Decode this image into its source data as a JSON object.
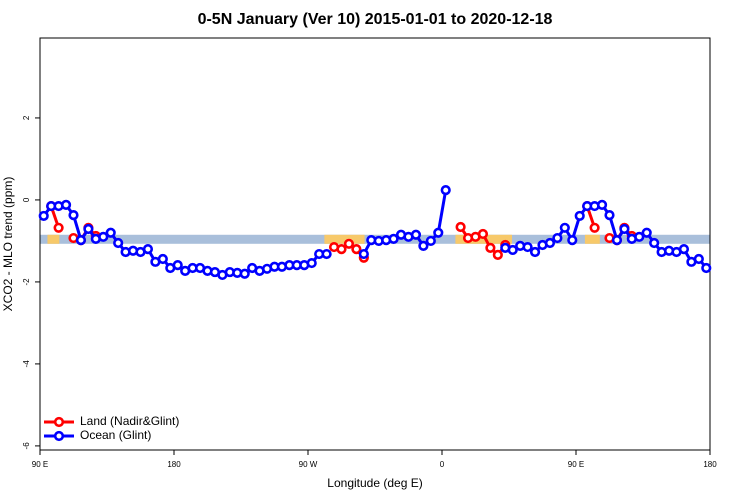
{
  "chart_data": {
    "type": "line",
    "title": "0-5N January (Ver 10)   2015-01-01 to 2020-12-18",
    "x_label": "Longitude (deg E)",
    "y_label": "XCO2 - MLO trend (ppm)",
    "xlim": [
      90,
      540
    ],
    "xticks": [
      {
        "value": 90,
        "label": "90 E"
      },
      {
        "value": 180,
        "label": "180"
      },
      {
        "value": 270,
        "label": "90 W"
      },
      {
        "value": 360,
        "label": "0"
      },
      {
        "value": 450,
        "label": "90 E"
      },
      {
        "value": 540,
        "label": "180"
      }
    ],
    "ylim": [
      -6.1,
      3.95
    ],
    "yticks": [
      -6,
      -4,
      -2,
      0,
      2
    ],
    "legend": "bottom-left",
    "band": {
      "range": [
        -1.07,
        -0.85
      ],
      "color": "#a9bfdb",
      "land": [
        [
          95,
          103
        ],
        [
          281,
          308
        ],
        [
          369,
          407
        ],
        [
          456,
          466
        ]
      ],
      "land_color": "#f7c96a"
    },
    "x": [
      92.5,
      97.5,
      102.5,
      107.5,
      112.5,
      117.5,
      122.5,
      127.5,
      132.5,
      137.5,
      142.5,
      147.5,
      152.5,
      157.5,
      162.5,
      167.5,
      172.5,
      177.5,
      182.5,
      187.5,
      192.5,
      197.5,
      202.5,
      207.5,
      212.5,
      217.5,
      222.5,
      227.5,
      232.5,
      237.5,
      242.5,
      247.5,
      252.5,
      257.5,
      262.5,
      267.5,
      272.5,
      277.5,
      282.5,
      287.5,
      292.5,
      297.5,
      302.5,
      307.5,
      312.5,
      317.5,
      322.5,
      327.5,
      332.5,
      337.5,
      342.5,
      347.5,
      352.5,
      357.5,
      362.5,
      367.5,
      372.5,
      377.5,
      382.5,
      387.5,
      392.5,
      397.5,
      402.5,
      407.5,
      412.5,
      417.5,
      422.5,
      427.5,
      432.5,
      437.5,
      442.5,
      447.5,
      452.5,
      457.5,
      462.5,
      467.5,
      472.5,
      477.5,
      482.5,
      487.5,
      492.5,
      497.5,
      502.5,
      507.5,
      512.5,
      517.5,
      522.5,
      527.5,
      532.5,
      537.5
    ],
    "series": [
      {
        "name": "Land (Nadir&Glint)",
        "color": "#ff0000",
        "values": [
          null,
          -0.15,
          -0.68,
          null,
          -0.93,
          -0.98,
          -0.68,
          -0.88,
          null,
          null,
          null,
          null,
          null,
          null,
          null,
          null,
          null,
          null,
          null,
          null,
          null,
          null,
          null,
          null,
          null,
          null,
          null,
          null,
          null,
          null,
          null,
          null,
          null,
          null,
          null,
          null,
          null,
          null,
          null,
          -1.15,
          -1.2,
          -1.07,
          -1.2,
          -1.41,
          null,
          null,
          null,
          null,
          null,
          null,
          null,
          null,
          null,
          null,
          null,
          null,
          -0.66,
          -0.93,
          -0.9,
          -0.83,
          -1.17,
          -1.34,
          -1.1,
          null,
          null,
          null,
          null,
          null,
          null,
          null,
          null,
          null,
          null,
          -0.15,
          -0.68,
          null,
          -0.93,
          -0.98,
          -0.68,
          -0.88,
          null,
          null,
          null,
          null,
          null,
          null,
          null,
          null,
          null,
          null
        ]
      },
      {
        "name": "Ocean (Glint)",
        "color": "#0000ff",
        "values": [
          -0.39,
          -0.15,
          -0.15,
          -0.12,
          -0.37,
          -0.98,
          -0.71,
          -0.95,
          -0.9,
          -0.8,
          -1.05,
          -1.27,
          -1.24,
          -1.27,
          -1.2,
          -1.51,
          -1.44,
          -1.66,
          -1.59,
          -1.73,
          -1.66,
          -1.66,
          -1.73,
          -1.76,
          -1.83,
          -1.76,
          -1.78,
          -1.8,
          -1.66,
          -1.73,
          -1.68,
          -1.63,
          -1.63,
          -1.59,
          -1.59,
          -1.59,
          -1.54,
          -1.32,
          -1.32,
          null,
          null,
          null,
          null,
          -1.32,
          -0.98,
          -1.0,
          -0.98,
          -0.95,
          -0.85,
          -0.9,
          -0.85,
          -1.12,
          -1.0,
          -0.8,
          0.24,
          null,
          null,
          null,
          null,
          null,
          null,
          null,
          -1.17,
          -1.22,
          -1.12,
          -1.15,
          -1.27,
          -1.1,
          -1.05,
          -0.93,
          -0.68,
          -0.98,
          -0.39,
          -0.15,
          -0.15,
          -0.12,
          -0.37,
          -0.98,
          -0.71,
          -0.95,
          -0.9,
          -0.8,
          -1.05,
          -1.27,
          -1.24,
          -1.27,
          -1.2,
          -1.51,
          -1.44,
          -1.66
        ]
      }
    ]
  }
}
